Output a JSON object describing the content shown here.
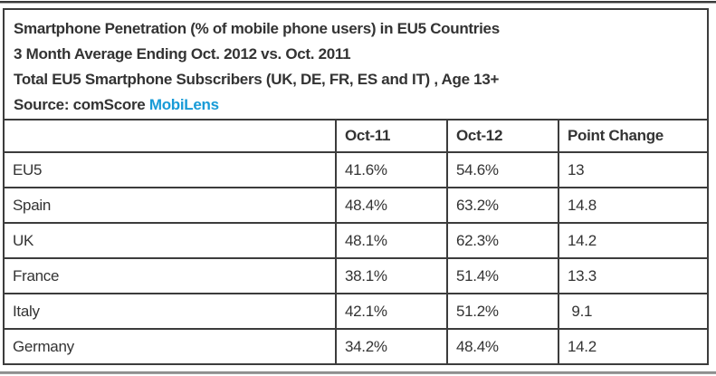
{
  "header": {
    "line1": "Smartphone Penetration (% of mobile phone users) in EU5 Countries",
    "line2": "3 Month Average Ending Oct. 2012 vs. Oct. 2011",
    "line3": "Total EU5 Smartphone Subscribers (UK, DE, FR, ES and IT) , Age 13+",
    "source_prefix": "Source: comScore",
    "source_link": "MobiLens"
  },
  "table": {
    "columns": [
      "",
      "Oct-11",
      "Oct-12",
      "Point Change"
    ],
    "rows": [
      [
        "EU5",
        "41.6%",
        "54.6%",
        "13"
      ],
      [
        "Spain",
        "48.4%",
        "63.2%",
        "14.8"
      ],
      [
        "UK",
        "48.1%",
        "62.3%",
        "14.2"
      ],
      [
        "France",
        "38.1%",
        "51.4%",
        "13.3"
      ],
      [
        "Italy",
        "42.1%",
        "51.2%",
        " 9.1"
      ],
      [
        "Germany",
        "34.2%",
        "48.4%",
        "14.2"
      ]
    ]
  },
  "colors": {
    "text": "#333333",
    "link_blue": "#189bd7",
    "table_border": "#3c3c3c",
    "top_rule": "#3a3a3a",
    "bottom_rule": "#9a9a9a",
    "background": "#ffffff"
  },
  "chart_data": {
    "type": "table",
    "title": "Smartphone Penetration (% of mobile phone users) in EU5 Countries",
    "subtitle": "3 Month Average Ending Oct. 2012 vs. Oct. 2011",
    "audience": "Total EU5 Smartphone Subscribers (UK, DE, FR, ES and IT) , Age 13+",
    "source": "Source: comScore MobiLens",
    "columns": [
      "",
      "Oct-11",
      "Oct-12",
      "Point Change"
    ],
    "categories": [
      "EU5",
      "Spain",
      "UK",
      "France",
      "Italy",
      "Germany"
    ],
    "series": [
      {
        "name": "Oct-11",
        "values": [
          41.6,
          48.4,
          48.1,
          38.1,
          42.1,
          34.2
        ],
        "unit": "%"
      },
      {
        "name": "Oct-12",
        "values": [
          54.6,
          63.2,
          62.3,
          51.4,
          51.2,
          48.4
        ],
        "unit": "%"
      },
      {
        "name": "Point Change",
        "values": [
          13,
          14.8,
          14.2,
          13.3,
          9.1,
          14.2
        ],
        "unit": "points"
      }
    ]
  }
}
